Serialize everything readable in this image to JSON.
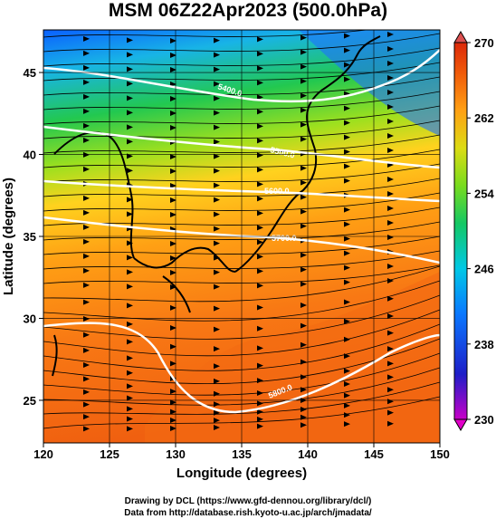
{
  "title": "MSM 06Z22Apr2023 (500.0hPa)",
  "x_axis": {
    "label": "Longitude (degrees)",
    "range": [
      120,
      150
    ],
    "ticks": [
      "120",
      "125",
      "130",
      "135",
      "140",
      "145",
      "150"
    ]
  },
  "y_axis": {
    "label": "Latitude  (degrees)",
    "range": [
      22.4,
      47.6
    ],
    "ticks": [
      "25",
      "30",
      "35",
      "40",
      "45"
    ]
  },
  "colorbar": {
    "range": [
      230,
      270
    ],
    "ticks": [
      "230",
      "238",
      "246",
      "254",
      "262",
      "270"
    ],
    "colors": [
      "#c800c8",
      "#1e1ec8",
      "#0a78ff",
      "#00c8e6",
      "#14c864",
      "#78dc1e",
      "#dcdc14",
      "#ffa014",
      "#f05a0a",
      "#dc280a"
    ]
  },
  "contour_labels": [
    "5400.0",
    "5500.0",
    "5600.0",
    "5700.0",
    "5800.0"
  ],
  "credits": {
    "line1": "Drawing by DCL (https://www.gfd-dennou.org/library/dcl/)",
    "line2": "Data from http://database.rish.kyoto-u.ac.jp/arch/jmadata/"
  }
}
